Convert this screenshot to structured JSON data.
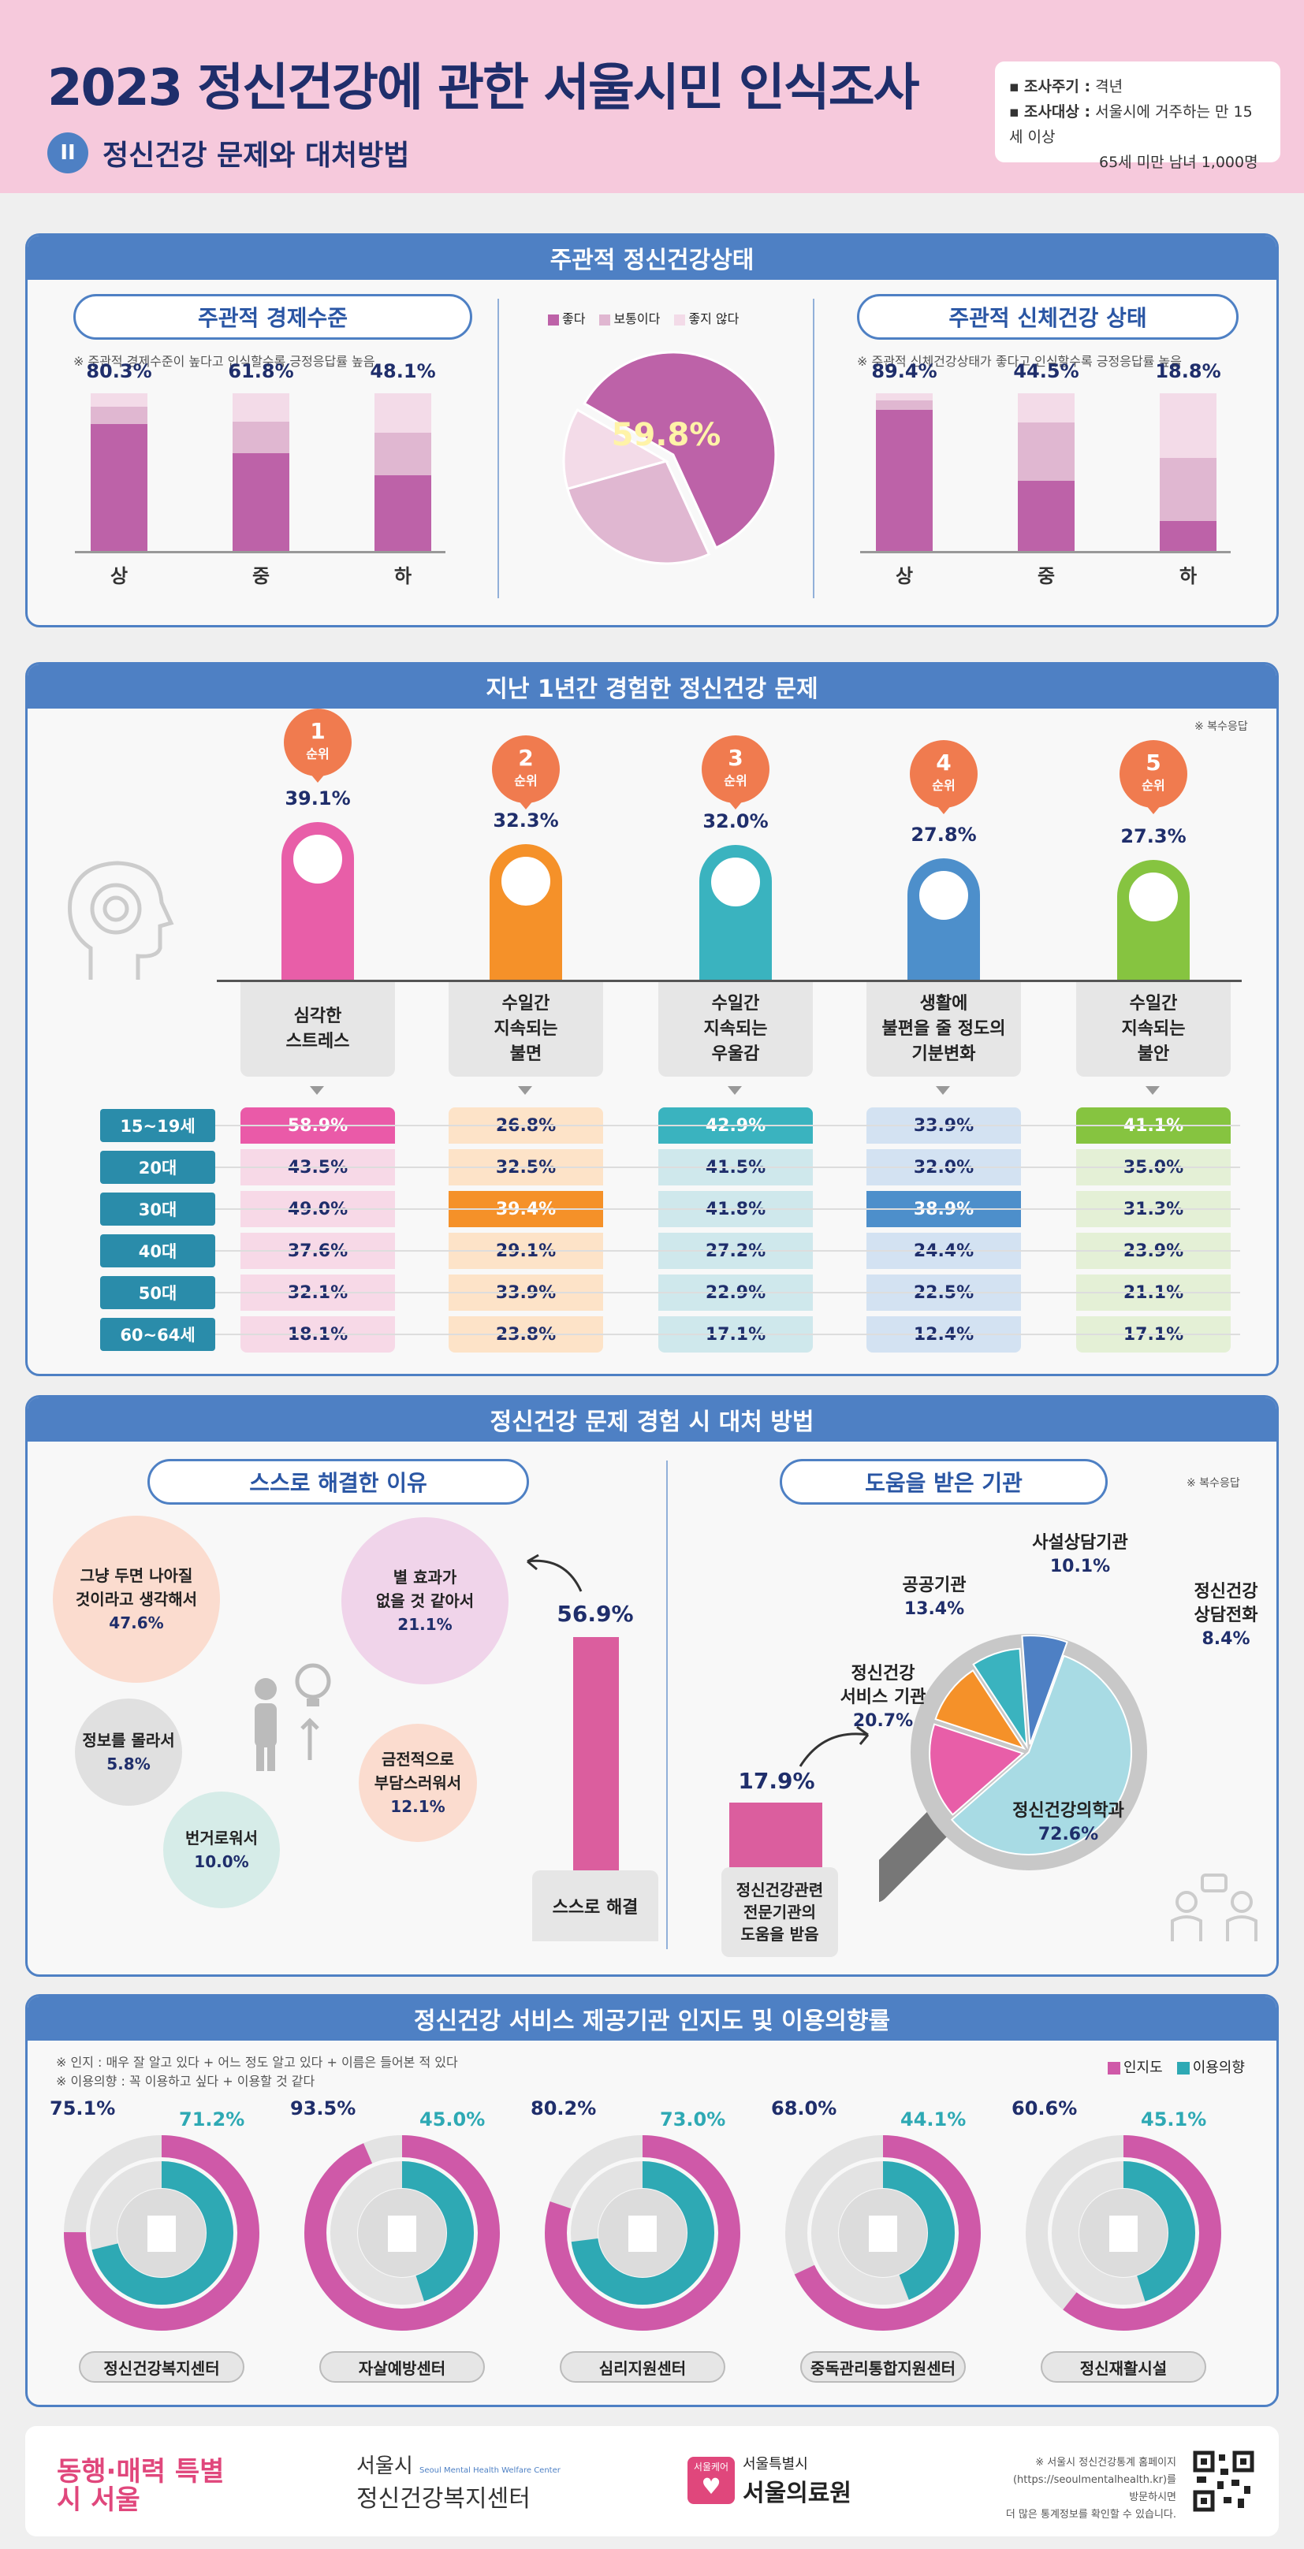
{
  "header": {
    "title": "2023 정신건강에 관한 서울시민 인식조사",
    "section_num": "II",
    "section_title": "정신건강 문제와 대처방법",
    "info1_label": "조사주기 :",
    "info1_value": "격년",
    "info2_label": "조사대상 :",
    "info2_value": "서울시에 거주하는 만 15세 이상",
    "info2_value2": "65세 미만 남녀 1,000명"
  },
  "colors": {
    "accent": "#4e80c4",
    "navy": "#1f2e6b",
    "pink_dark": "#bd62a8",
    "pink_mid": "#e0b7d1",
    "pink_light": "#f3dbe8"
  },
  "subjective": {
    "title": "주관적 정신건강상태",
    "economic": {
      "title": "주관적 경제수준",
      "note": "※ 주관적 경제수준이 높다고 인식할수록 긍정응답률 높음",
      "bars": [
        {
          "label": "상",
          "pct": "80.3%",
          "good": 80.3,
          "normal": 11,
          "bad": 8.7
        },
        {
          "label": "중",
          "pct": "61.8%",
          "good": 61.8,
          "normal": 20,
          "bad": 18.2
        },
        {
          "label": "하",
          "pct": "48.1%",
          "good": 48.1,
          "normal": 27,
          "bad": 24.9
        }
      ]
    },
    "legend": [
      "좋다",
      "보통이다",
      "좋지 않다"
    ],
    "pie": {
      "value": "59.8%",
      "slices": [
        59.8,
        27.5,
        12.7
      ]
    },
    "physical": {
      "title": "주관적 신체건강 상태",
      "note": "※ 주관적 신체건강상태가 좋다고 인식할수록 긍정응답률 높음",
      "bars": [
        {
          "label": "상",
          "pct": "89.4%",
          "good": 89.4,
          "normal": 6,
          "bad": 4.6
        },
        {
          "label": "중",
          "pct": "44.5%",
          "good": 44.5,
          "normal": 37,
          "bad": 18.5
        },
        {
          "label": "하",
          "pct": "18.8%",
          "good": 18.8,
          "normal": 40,
          "bad": 41.2
        }
      ]
    }
  },
  "problems": {
    "title": "지난 1년간 경험한 정신건강 문제",
    "note": "※ 복수응답",
    "rank_suffix": "순위",
    "items": [
      {
        "rank": "1",
        "pct": "39.1%",
        "label": "심각한\n스트레스",
        "color": "#e85ea8",
        "light": "#f7d9e7",
        "hi": "#ea5aa8",
        "icon": "stress-icon"
      },
      {
        "rank": "2",
        "pct": "32.3%",
        "label": "수일간\n지속되는\n불면",
        "color": "#f59129",
        "light": "#fde3c8",
        "hi": "#f59129",
        "icon": "insomnia-icon"
      },
      {
        "rank": "3",
        "pct": "32.0%",
        "label": "수일간\n지속되는\n우울감",
        "color": "#3ab3bf",
        "light": "#cfe8ec",
        "hi": "#3ab3bf",
        "icon": "depression-icon"
      },
      {
        "rank": "4",
        "pct": "27.8%",
        "label": "생활에\n불편을 줄 정도의\n기분변화",
        "color": "#4d8fcb",
        "light": "#d3e2f2",
        "hi": "#4d8fcb",
        "icon": "mood-change-icon"
      },
      {
        "rank": "5",
        "pct": "27.3%",
        "label": "수일간\n지속되는\n불안",
        "color": "#86c440",
        "light": "#e4f0d6",
        "hi": "#86c440",
        "icon": "anxiety-icon"
      }
    ],
    "ages": [
      "15~19세",
      "20대",
      "30대",
      "40대",
      "50대",
      "60~64세"
    ],
    "table": [
      [
        "58.9%",
        "43.5%",
        "49.0%",
        "37.6%",
        "32.1%",
        "18.1%"
      ],
      [
        "26.8%",
        "32.5%",
        "39.4%",
        "29.1%",
        "33.9%",
        "23.8%"
      ],
      [
        "42.9%",
        "41.5%",
        "41.8%",
        "27.2%",
        "22.9%",
        "17.1%"
      ],
      [
        "33.9%",
        "32.0%",
        "38.9%",
        "24.4%",
        "22.5%",
        "12.4%"
      ],
      [
        "41.1%",
        "35.0%",
        "31.3%",
        "23.9%",
        "21.1%",
        "17.1%"
      ]
    ],
    "highlight": [
      0,
      2,
      0,
      2,
      0
    ]
  },
  "coping": {
    "title": "정신건강 문제 경험 시 대처 방법",
    "self_title": "스스로 해결한 이유",
    "help_title": "도움을 받은 기관",
    "note": "※ 복수응답",
    "reasons": [
      {
        "label": "그냥 두면 나아질\n것이라고 생각해서",
        "value": "47.6%"
      },
      {
        "label": "별 효과가\n없을 것 같아서",
        "value": "21.1%"
      },
      {
        "label": "금전적으로\n부담스러워서",
        "value": "12.1%"
      },
      {
        "label": "정보를 몰라서",
        "value": "5.8%"
      },
      {
        "label": "번거로워서",
        "value": "10.0%"
      }
    ],
    "self_value": "56.9%",
    "self_label": "스스로 해결",
    "help_value": "17.9%",
    "help_label": "정신건강관련\n전문기관의\n도움을 받음",
    "orgs": [
      {
        "label": "정신건강의학과",
        "value": "72.6%"
      },
      {
        "label": "정신건강\n서비스 기관",
        "value": "20.7%"
      },
      {
        "label": "공공기관",
        "value": "13.4%"
      },
      {
        "label": "사설상담기관",
        "value": "10.1%"
      },
      {
        "label": "정신건강\n상담전화",
        "value": "8.4%"
      }
    ]
  },
  "services": {
    "title": "정신건강 서비스 제공기관 인지도 및 이용의향률",
    "note1": "※ 인지 : 매우 잘 알고 있다 + 어느 정도 알고 있다 + 이름은 들어본 적 있다",
    "note2": "※ 이용의향 : 꼭 이용하고 싶다 + 이용할 것 같다",
    "legend_aware": "인지도",
    "legend_intent": "이용의향",
    "items": [
      {
        "label": "정신건강복지센터",
        "aware_pct": "75.1%",
        "intent_pct": "71.2%",
        "aware": 75.1,
        "intent": 71.2
      },
      {
        "label": "자살예방센터",
        "aware_pct": "93.5%",
        "intent_pct": "45.0%",
        "aware": 93.5,
        "intent": 45.0
      },
      {
        "label": "심리지원센터",
        "aware_pct": "80.2%",
        "intent_pct": "73.0%",
        "aware": 80.2,
        "intent": 73.0
      },
      {
        "label": "중독관리통합지원센터",
        "aware_pct": "68.0%",
        "intent_pct": "44.1%",
        "aware": 68.0,
        "intent": 44.1
      },
      {
        "label": "정신재활시설",
        "aware_pct": "60.6%",
        "intent_pct": "45.1%",
        "aware": 60.6,
        "intent": 45.1
      }
    ]
  },
  "footer": {
    "logo1": "동행·매력 특별시 서울",
    "logo2_top": "서울시",
    "logo2_sub": "Seoul Mental Health Welfare Center",
    "logo2_main": "정신건강복지센터",
    "logo3_badge": "서울케어",
    "logo3_top": "서울특별시",
    "logo3_main": "서울의료원",
    "note1": "※ 서울시 정신건강통계 홈페이지",
    "note2": "(https://seoulmentalhealth.kr)를 방문하시면",
    "note3": "더 많은 통계정보를 확인할 수 있습니다."
  }
}
